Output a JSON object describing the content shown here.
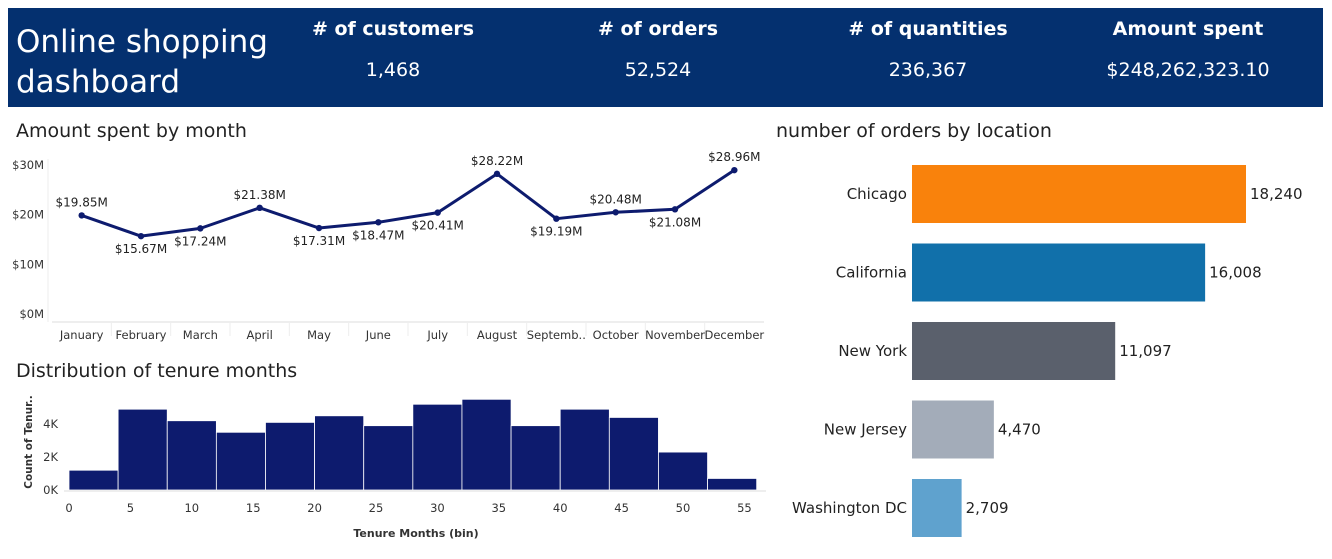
{
  "header": {
    "title_line1": "Online shopping",
    "title_line2": "dashboard",
    "kpis": [
      {
        "label": "# of customers",
        "value": "1,468"
      },
      {
        "label": "# of orders",
        "value": "52,524"
      },
      {
        "label": "# of quantities",
        "value": "236,367"
      },
      {
        "label": "Amount spent",
        "value": "$248,262,323.10"
      }
    ]
  },
  "charts_titles": {
    "amount_by_month": "Amount spent by month",
    "orders_by_location": "number of orders by location",
    "tenure_distribution": "Distribution of tenure months"
  },
  "chart_data": [
    {
      "type": "line",
      "title": "Amount spent by month",
      "categories": [
        "January",
        "February",
        "March",
        "April",
        "May",
        "June",
        "July",
        "August",
        "Septemb..",
        "October",
        "November",
        "December"
      ],
      "values": [
        19.85,
        15.67,
        17.24,
        21.38,
        17.31,
        18.47,
        20.41,
        28.22,
        19.19,
        20.48,
        21.08,
        28.96
      ],
      "labels": [
        "$19.85M",
        "$15.67M",
        "$17.24M",
        "$21.38M",
        "$17.31M",
        "$18.47M",
        "$20.41M",
        "$28.22M",
        "$19.19M",
        "$20.48M",
        "$21.08M",
        "$28.96M"
      ],
      "yticks": [
        "$0M",
        "$10M",
        "$20M",
        "$30M"
      ],
      "ylim": [
        0,
        30
      ],
      "color": "#0d1b6e"
    },
    {
      "type": "bar",
      "title": "number of orders by location",
      "orientation": "horizontal",
      "categories": [
        "Chicago",
        "California",
        "New York",
        "New Jersey",
        "Washington DC"
      ],
      "values": [
        18240,
        16008,
        11097,
        4470,
        2709
      ],
      "labels": [
        "18,240",
        "16,008",
        "11,097",
        "4,470",
        "2,709"
      ],
      "colors": [
        "#f9820c",
        "#1170aa",
        "#5a606c",
        "#a3acb9",
        "#5fa2ce"
      ]
    },
    {
      "type": "bar",
      "title": "Distribution of tenure months",
      "xlabel": "Tenure Months (bin)",
      "ylabel": "Count of Tenur..",
      "bins": [
        0,
        4,
        8,
        12,
        16,
        20,
        24,
        28,
        32,
        36,
        40,
        44,
        48,
        52
      ],
      "values": [
        1200,
        4900,
        4200,
        3500,
        4100,
        4500,
        3900,
        5200,
        5500,
        3900,
        4900,
        4400,
        2300,
        700
      ],
      "xticks": [
        "0",
        "5",
        "10",
        "15",
        "20",
        "25",
        "30",
        "35",
        "40",
        "45",
        "50",
        "55"
      ],
      "yticks": [
        "0K",
        "2K",
        "4K"
      ],
      "color": "#0d1b6e"
    }
  ]
}
